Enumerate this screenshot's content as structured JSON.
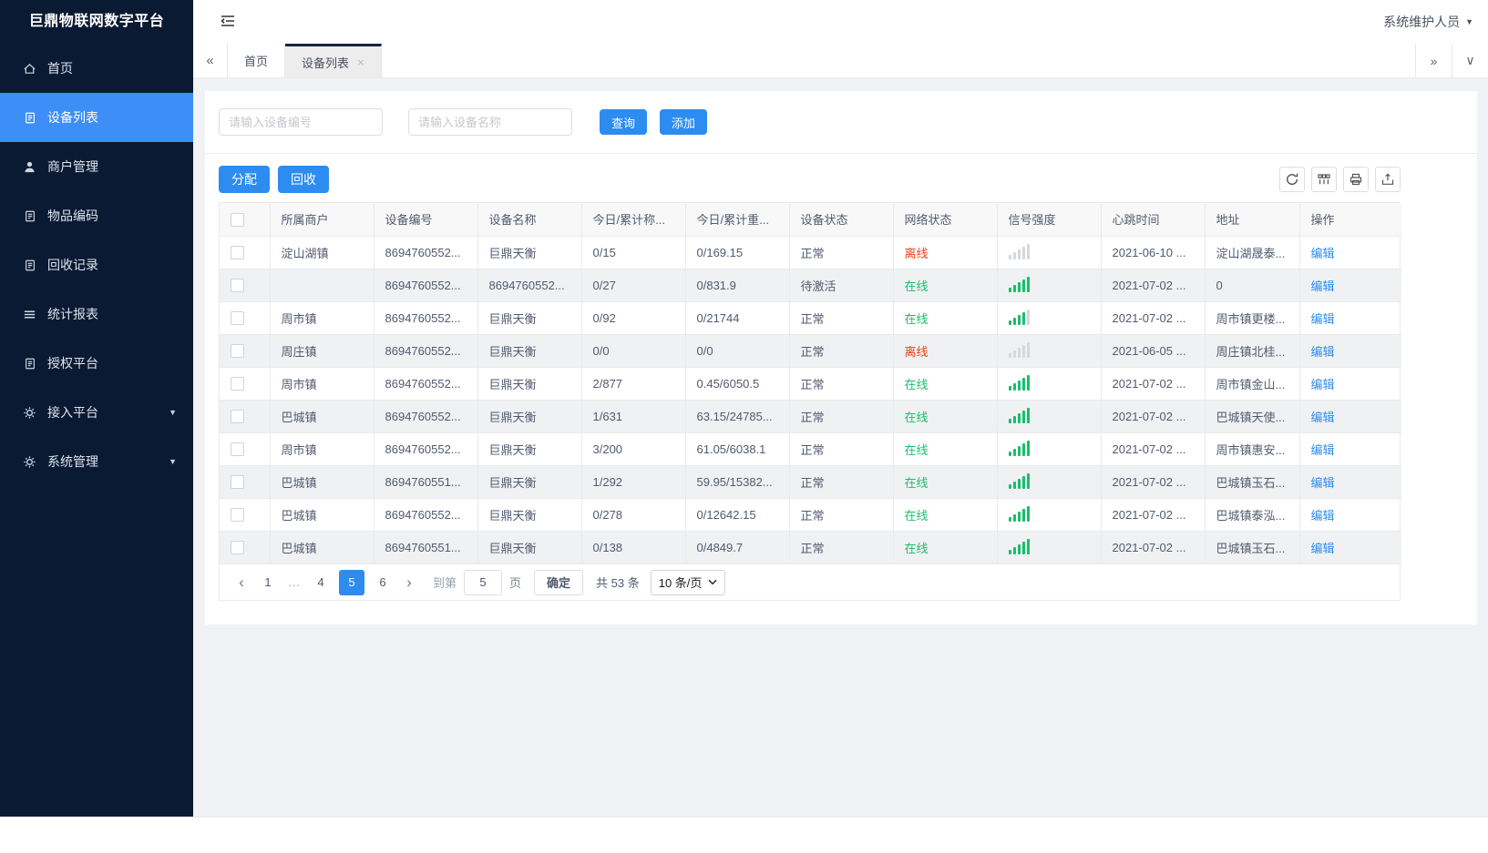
{
  "app": {
    "title": "巨鼎物联网数字平台",
    "user": "系统维护人员"
  },
  "glyphs": {
    "collapse_tabs_left": "«",
    "more_tabs_right": "»",
    "tab_actions_down": "∨",
    "user_caret": "▼",
    "menu_caret": "▼",
    "tab_close": "×",
    "page_prev": "‹",
    "page_next": "›"
  },
  "colors": {
    "primary": "#2d8cf0",
    "sidebar_bg": "#0b1a33",
    "sidebar_active": "#3e8ef7",
    "online_green": "#19be6b",
    "offline_red": "#ed4014",
    "stripe": "#f0f1f3",
    "border": "#e8eaec"
  },
  "sidebar": {
    "items": [
      {
        "key": "home",
        "label": "首页",
        "icon": "home-icon",
        "active": false,
        "expandable": false
      },
      {
        "key": "device-list",
        "label": "设备列表",
        "icon": "clipboard-icon",
        "active": true,
        "expandable": false
      },
      {
        "key": "merchant-mgmt",
        "label": "商户管理",
        "icon": "person-icon",
        "active": false,
        "expandable": false
      },
      {
        "key": "item-code",
        "label": "物品编码",
        "icon": "clipboard-icon",
        "active": false,
        "expandable": false
      },
      {
        "key": "recycle-records",
        "label": "回收记录",
        "icon": "clipboard-icon",
        "active": false,
        "expandable": false
      },
      {
        "key": "stats-report",
        "label": "统计报表",
        "icon": "lines-icon",
        "active": false,
        "expandable": false
      },
      {
        "key": "auth-platform",
        "label": "授权平台",
        "icon": "clipboard-icon",
        "active": false,
        "expandable": false
      },
      {
        "key": "access-platform",
        "label": "接入平台",
        "icon": "gear-icon",
        "active": false,
        "expandable": true
      },
      {
        "key": "system-mgmt",
        "label": "系统管理",
        "icon": "gear-icon",
        "active": false,
        "expandable": true
      }
    ]
  },
  "tabs": {
    "items": [
      {
        "label": "首页",
        "active": false,
        "closable": false
      },
      {
        "label": "设备列表",
        "active": true,
        "closable": true
      }
    ]
  },
  "search": {
    "device_no_placeholder": "请输入设备编号",
    "device_name_placeholder": "请输入设备名称",
    "query_label": "查询",
    "add_label": "添加"
  },
  "toolbar": {
    "assign_label": "分配",
    "recycle_label": "回收",
    "icons": [
      "refresh-icon",
      "columns-icon",
      "print-icon",
      "export-icon"
    ]
  },
  "table": {
    "columns": [
      "所属商户",
      "设备编号",
      "设备名称",
      "今日/累计称...",
      "今日/累计重...",
      "设备状态",
      "网络状态",
      "信号强度",
      "心跳时间",
      "地址",
      "操作"
    ],
    "rows": [
      {
        "merchant": "淀山湖镇",
        "device_no": "8694760552...",
        "device_name": "巨鼎天衡",
        "today_count": "0/15",
        "today_weight": "0/169.15",
        "device_status": "正常",
        "network_status": "离线",
        "online": false,
        "signal": 0,
        "heartbeat": "2021-06-10 ...",
        "address": "淀山湖晟泰...",
        "action": "编辑"
      },
      {
        "merchant": "",
        "device_no": "8694760552...",
        "device_name": "8694760552...",
        "today_count": "0/27",
        "today_weight": "0/831.9",
        "device_status": "待激活",
        "network_status": "在线",
        "online": true,
        "signal": 5,
        "heartbeat": "2021-07-02 ...",
        "address": "0",
        "action": "编辑"
      },
      {
        "merchant": "周市镇",
        "device_no": "8694760552...",
        "device_name": "巨鼎天衡",
        "today_count": "0/92",
        "today_weight": "0/21744",
        "device_status": "正常",
        "network_status": "在线",
        "online": true,
        "signal": 4,
        "heartbeat": "2021-07-02 ...",
        "address": "周市镇更楼...",
        "action": "编辑"
      },
      {
        "merchant": "周庄镇",
        "device_no": "8694760552...",
        "device_name": "巨鼎天衡",
        "today_count": "0/0",
        "today_weight": "0/0",
        "device_status": "正常",
        "network_status": "离线",
        "online": false,
        "signal": 0,
        "heartbeat": "2021-06-05 ...",
        "address": "周庄镇北桂...",
        "action": "编辑"
      },
      {
        "merchant": "周市镇",
        "device_no": "8694760552...",
        "device_name": "巨鼎天衡",
        "today_count": "2/877",
        "today_weight": "0.45/6050.5",
        "device_status": "正常",
        "network_status": "在线",
        "online": true,
        "signal": 5,
        "heartbeat": "2021-07-02 ...",
        "address": "周市镇金山...",
        "action": "编辑"
      },
      {
        "merchant": "巴城镇",
        "device_no": "8694760552...",
        "device_name": "巨鼎天衡",
        "today_count": "1/631",
        "today_weight": "63.15/24785...",
        "device_status": "正常",
        "network_status": "在线",
        "online": true,
        "signal": 5,
        "heartbeat": "2021-07-02 ...",
        "address": "巴城镇天使...",
        "action": "编辑"
      },
      {
        "merchant": "周市镇",
        "device_no": "8694760552...",
        "device_name": "巨鼎天衡",
        "today_count": "3/200",
        "today_weight": "61.05/6038.1",
        "device_status": "正常",
        "network_status": "在线",
        "online": true,
        "signal": 5,
        "heartbeat": "2021-07-02 ...",
        "address": "周市镇惠安...",
        "action": "编辑"
      },
      {
        "merchant": "巴城镇",
        "device_no": "8694760551...",
        "device_name": "巨鼎天衡",
        "today_count": "1/292",
        "today_weight": "59.95/15382...",
        "device_status": "正常",
        "network_status": "在线",
        "online": true,
        "signal": 5,
        "heartbeat": "2021-07-02 ...",
        "address": "巴城镇玉石...",
        "action": "编辑"
      },
      {
        "merchant": "巴城镇",
        "device_no": "8694760552...",
        "device_name": "巨鼎天衡",
        "today_count": "0/278",
        "today_weight": "0/12642.15",
        "device_status": "正常",
        "network_status": "在线",
        "online": true,
        "signal": 5,
        "heartbeat": "2021-07-02 ...",
        "address": "巴城镇泰泓...",
        "action": "编辑"
      },
      {
        "merchant": "巴城镇",
        "device_no": "8694760551...",
        "device_name": "巨鼎天衡",
        "today_count": "0/138",
        "today_weight": "0/4849.7",
        "device_status": "正常",
        "network_status": "在线",
        "online": true,
        "signal": 5,
        "heartbeat": "2021-07-02 ...",
        "address": "巴城镇玉石...",
        "action": "编辑"
      }
    ]
  },
  "pagination": {
    "pages": [
      "1",
      "...",
      "4",
      "5",
      "6"
    ],
    "active_page": "5",
    "goto_label": "到第",
    "goto_value": "5",
    "page_label": "页",
    "confirm_label": "确定",
    "total_label": "共 53 条",
    "page_size": "10 条/页"
  }
}
